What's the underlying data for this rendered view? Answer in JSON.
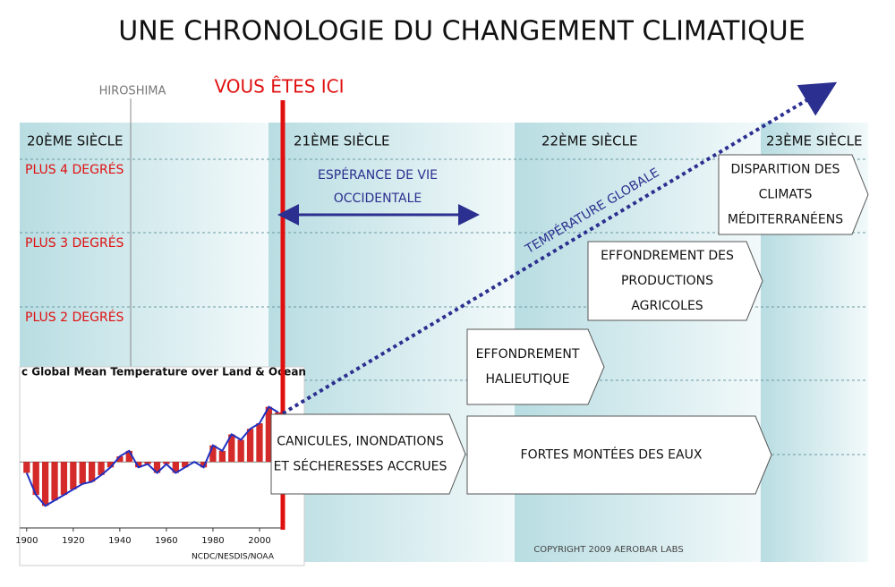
{
  "title": "UNE CHRONOLOGIE DU CHANGEMENT CLIMATIQUE",
  "centuries": [
    "20ÈME SIÈCLE",
    "21ÈME SIÈCLE",
    "22ÈME SIÈCLE",
    "23ÈME SIÈCLE"
  ],
  "temperature_levels": [
    "PLUS 4 DEGRÉS",
    "PLUS 3 DEGRÉS",
    "PLUS 2 DEGRÉS"
  ],
  "markers": {
    "hiroshima": "HIROSHIMA",
    "now": "VOUS ÊTES ICI"
  },
  "life_expectancy": [
    "ESPÉRANCE DE VIE",
    "OCCIDENTALE"
  ],
  "trend_label": "TEMPÉRATURE GLOBALE",
  "impacts": [
    {
      "lines": [
        "CANICULES, INONDATIONS",
        "ET SÉCHERESSES ACCRUES"
      ]
    },
    {
      "lines": [
        "FORTES MONTÉES DES EAUX"
      ]
    },
    {
      "lines": [
        "EFFONDREMENT",
        "HALIEUTIQUE"
      ]
    },
    {
      "lines": [
        "EFFONDREMENT DES",
        "PRODUCTIONS",
        "AGRICOLES"
      ]
    },
    {
      "lines": [
        "DISPARITION DES",
        "CLIMATS",
        "MÉDITERRANÉENS"
      ]
    }
  ],
  "inset": {
    "type": "bar",
    "title": "c Global Mean Temperature over Land & Ocean",
    "credit": "NCDC/NESDIS/NOAA",
    "x": [
      1900,
      1904,
      1908,
      1912,
      1916,
      1920,
      1924,
      1928,
      1932,
      1936,
      1940,
      1944,
      1948,
      1952,
      1956,
      1960,
      1964,
      1968,
      1972,
      1976,
      1980,
      1984,
      1988,
      1992,
      1996,
      2000,
      2004,
      2008
    ],
    "values": [
      -0.1,
      -0.3,
      -0.4,
      -0.35,
      -0.3,
      -0.25,
      -0.2,
      -0.18,
      -0.12,
      -0.05,
      0.05,
      0.1,
      -0.05,
      -0.02,
      -0.1,
      -0.02,
      -0.1,
      -0.05,
      0.0,
      -0.05,
      0.15,
      0.1,
      0.25,
      0.2,
      0.3,
      0.35,
      0.5,
      0.45
    ],
    "xlim": [
      1897,
      2010
    ],
    "ylim": [
      -0.6,
      0.7
    ],
    "xticks": [
      1900,
      1920,
      1940,
      1960,
      1980,
      2000
    ]
  },
  "copyright": "COPYRIGHT 2009 AEROBAR LABS"
}
